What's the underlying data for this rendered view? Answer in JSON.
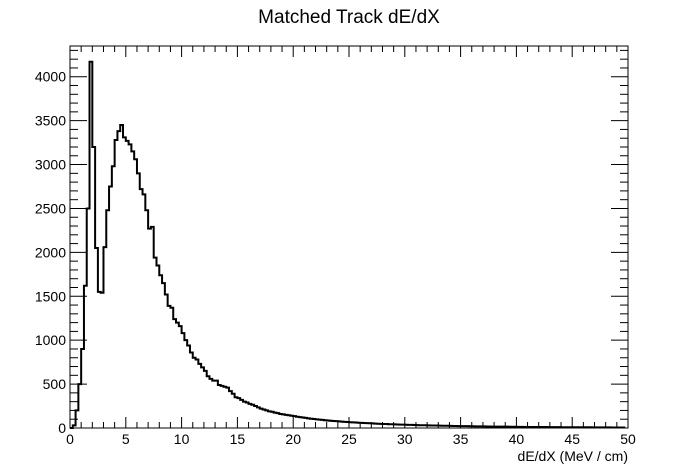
{
  "chart_data": {
    "type": "histogram",
    "title": "Matched Track dE/dX",
    "xlabel": "dE/dX (MeV / cm)",
    "ylabel": "",
    "xlim": [
      0,
      50
    ],
    "ylim": [
      0,
      4350
    ],
    "x_ticks": [
      "0",
      "5",
      "10",
      "15",
      "20",
      "25",
      "30",
      "35",
      "40",
      "45",
      "50"
    ],
    "y_ticks": [
      "0",
      "500",
      "1000",
      "1500",
      "2000",
      "2500",
      "3000",
      "3500",
      "4000"
    ],
    "bin_width": 0.25,
    "values": [
      0,
      30,
      200,
      500,
      900,
      1620,
      2500,
      4170,
      3200,
      2050,
      1550,
      1540,
      2060,
      2480,
      2750,
      2980,
      3280,
      3380,
      3450,
      3310,
      3270,
      3230,
      3150,
      3060,
      2900,
      2720,
      2660,
      2480,
      2270,
      2290,
      1940,
      1850,
      1740,
      1650,
      1520,
      1390,
      1370,
      1240,
      1200,
      1160,
      1080,
      1000,
      940,
      860,
      800,
      780,
      730,
      690,
      650,
      590,
      560,
      540,
      540,
      490,
      480,
      470,
      460,
      420,
      390,
      350,
      340,
      320,
      300,
      290,
      275,
      265,
      250,
      235,
      220,
      210,
      200,
      190,
      185,
      175,
      170,
      160,
      155,
      150,
      145,
      140,
      135,
      128,
      124,
      120,
      115,
      110,
      105,
      102,
      98,
      95,
      92,
      88,
      85,
      83,
      80,
      78,
      75,
      72,
      70,
      68,
      66,
      64,
      62,
      60,
      58,
      57,
      55,
      54,
      52,
      50,
      49,
      47,
      46,
      45,
      43,
      42,
      41,
      40,
      39,
      38,
      37,
      36,
      35,
      34,
      33,
      32,
      31,
      31,
      30,
      29,
      28,
      28,
      27,
      26,
      25,
      25,
      24,
      23,
      23,
      22,
      22,
      21,
      21,
      20,
      20,
      19,
      19,
      18,
      18,
      17,
      17,
      16,
      16,
      16,
      15,
      15,
      15,
      14,
      14,
      14,
      13,
      13,
      13,
      12,
      12,
      12,
      12,
      11,
      11,
      11,
      11,
      10,
      10,
      10,
      10,
      10,
      9,
      9,
      9,
      9,
      9,
      8,
      8,
      8,
      8,
      8,
      8,
      7,
      7,
      7,
      7,
      7,
      7,
      7,
      6,
      6,
      6,
      6,
      6
    ],
    "grid": false,
    "legend": "none",
    "line_color": "#000000"
  }
}
